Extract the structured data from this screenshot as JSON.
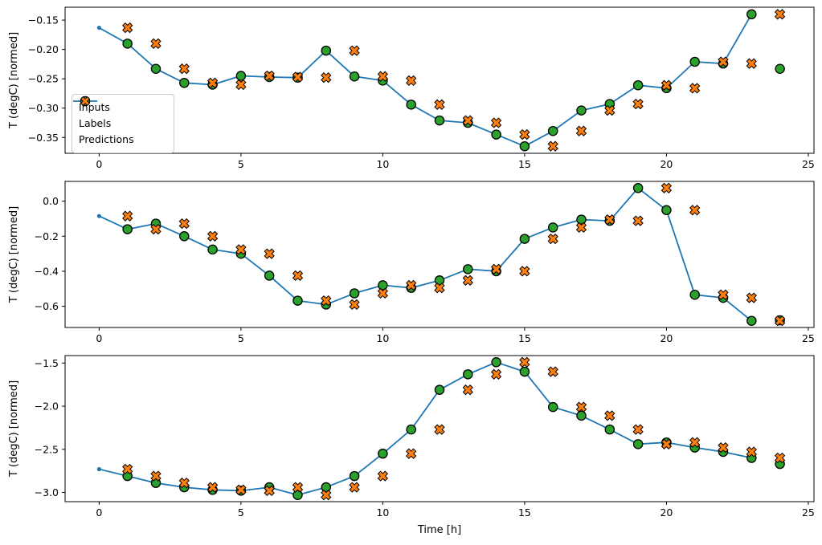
{
  "figure": {
    "xlabel": "Time [h]",
    "ylabel": "T (degC) [normed]"
  },
  "colors": {
    "inputs_line": "#1f77b4",
    "labels_marker": "#2ca02c",
    "predictions_marker": "#ff7f0e",
    "marker_edge": "#000000",
    "axis": "#000000",
    "background": "#ffffff"
  },
  "legend": {
    "items": [
      {
        "label": "Inputs",
        "marker": "line-dot",
        "color": "#1f77b4"
      },
      {
        "label": "Labels",
        "marker": "circle",
        "color": "#2ca02c"
      },
      {
        "label": "Predictions",
        "marker": "x-cross",
        "color": "#ff7f0e"
      }
    ]
  },
  "chart_data": [
    {
      "type": "line",
      "title": "",
      "xlabel": "",
      "ylabel": "T (degC) [normed]",
      "xlim": [
        -1.2,
        25.2
      ],
      "ylim": [
        -0.377,
        -0.128
      ],
      "x_ticks": [
        0,
        5,
        10,
        15,
        20,
        25
      ],
      "x_tick_labels": [
        "0",
        "5",
        "10",
        "15",
        "20",
        "25"
      ],
      "y_ticks": [
        -0.15,
        -0.2,
        -0.25,
        -0.3,
        -0.35
      ],
      "y_tick_labels": [
        "−0.15",
        "−0.20",
        "−0.25",
        "−0.30",
        "−0.35"
      ],
      "grid": false,
      "legend_position": "lower left",
      "series": [
        {
          "name": "Inputs",
          "style": "line-dot",
          "x": [
            0,
            1,
            2,
            3,
            4,
            5,
            6,
            7,
            8,
            9,
            10,
            11,
            12,
            13,
            14,
            15,
            16,
            17,
            18,
            19,
            20,
            21,
            22,
            23
          ],
          "y": [
            -0.163,
            -0.19,
            -0.233,
            -0.257,
            -0.26,
            -0.245,
            -0.247,
            -0.248,
            -0.202,
            -0.246,
            -0.253,
            -0.294,
            -0.321,
            -0.325,
            -0.345,
            -0.365,
            -0.339,
            -0.304,
            -0.293,
            -0.261,
            -0.266,
            -0.221,
            -0.224,
            -0.14
          ]
        },
        {
          "name": "Labels",
          "style": "circle",
          "x": [
            1,
            2,
            3,
            4,
            5,
            6,
            7,
            8,
            9,
            10,
            11,
            12,
            13,
            14,
            15,
            16,
            17,
            18,
            19,
            20,
            21,
            22,
            23,
            24
          ],
          "y": [
            -0.19,
            -0.233,
            -0.257,
            -0.26,
            -0.245,
            -0.247,
            -0.248,
            -0.202,
            -0.246,
            -0.253,
            -0.294,
            -0.321,
            -0.325,
            -0.345,
            -0.365,
            -0.339,
            -0.304,
            -0.293,
            -0.261,
            -0.266,
            -0.221,
            -0.224,
            -0.14,
            -0.233
          ]
        },
        {
          "name": "Predictions",
          "style": "x-cross",
          "x": [
            1,
            2,
            3,
            4,
            5,
            6,
            7,
            8,
            9,
            10,
            11,
            12,
            13,
            14,
            15,
            16,
            17,
            18,
            19,
            20,
            21,
            22,
            23,
            24
          ],
          "y": [
            -0.163,
            -0.19,
            -0.233,
            -0.257,
            -0.26,
            -0.245,
            -0.247,
            -0.248,
            -0.202,
            -0.246,
            -0.253,
            -0.294,
            -0.321,
            -0.325,
            -0.345,
            -0.365,
            -0.339,
            -0.304,
            -0.293,
            -0.261,
            -0.266,
            -0.221,
            -0.224,
            -0.14
          ]
        }
      ]
    },
    {
      "type": "line",
      "title": "",
      "xlabel": "",
      "ylabel": "T (degC) [normed]",
      "xlim": [
        -1.2,
        25.2
      ],
      "ylim": [
        -0.721,
        0.113
      ],
      "x_ticks": [
        0,
        5,
        10,
        15,
        20,
        25
      ],
      "x_tick_labels": [
        "0",
        "5",
        "10",
        "15",
        "20",
        "25"
      ],
      "y_ticks": [
        0.0,
        -0.2,
        -0.4,
        -0.6
      ],
      "y_tick_labels": [
        "0.0",
        "−0.2",
        "−0.4",
        "−0.6"
      ],
      "grid": false,
      "series": [
        {
          "name": "Inputs",
          "style": "line-dot",
          "x": [
            0,
            1,
            2,
            3,
            4,
            5,
            6,
            7,
            8,
            9,
            10,
            11,
            12,
            13,
            14,
            15,
            16,
            17,
            18,
            19,
            20,
            21,
            22,
            23
          ],
          "y": [
            -0.085,
            -0.16,
            -0.128,
            -0.2,
            -0.276,
            -0.3,
            -0.425,
            -0.568,
            -0.59,
            -0.526,
            -0.48,
            -0.495,
            -0.452,
            -0.388,
            -0.4,
            -0.215,
            -0.15,
            -0.105,
            -0.112,
            0.075,
            -0.051,
            -0.534,
            -0.552,
            -0.683
          ]
        },
        {
          "name": "Labels",
          "style": "circle",
          "x": [
            1,
            2,
            3,
            4,
            5,
            6,
            7,
            8,
            9,
            10,
            11,
            12,
            13,
            14,
            15,
            16,
            17,
            18,
            19,
            20,
            21,
            22,
            23,
            24
          ],
          "y": [
            -0.16,
            -0.128,
            -0.2,
            -0.276,
            -0.3,
            -0.425,
            -0.568,
            -0.59,
            -0.526,
            -0.48,
            -0.495,
            -0.452,
            -0.388,
            -0.4,
            -0.215,
            -0.15,
            -0.105,
            -0.112,
            0.075,
            -0.051,
            -0.534,
            -0.552,
            -0.683,
            -0.68
          ]
        },
        {
          "name": "Predictions",
          "style": "x-cross",
          "x": [
            1,
            2,
            3,
            4,
            5,
            6,
            7,
            8,
            9,
            10,
            11,
            12,
            13,
            14,
            15,
            16,
            17,
            18,
            19,
            20,
            21,
            22,
            23,
            24
          ],
          "y": [
            -0.085,
            -0.16,
            -0.128,
            -0.2,
            -0.276,
            -0.3,
            -0.425,
            -0.568,
            -0.59,
            -0.526,
            -0.48,
            -0.495,
            -0.452,
            -0.388,
            -0.4,
            -0.215,
            -0.15,
            -0.105,
            -0.112,
            0.075,
            -0.051,
            -0.534,
            -0.552,
            -0.683
          ]
        }
      ]
    },
    {
      "type": "line",
      "title": "",
      "xlabel": "Time [h]",
      "ylabel": "T (degC) [normed]",
      "xlim": [
        -1.2,
        25.2
      ],
      "ylim": [
        -3.107,
        -1.413
      ],
      "x_ticks": [
        0,
        5,
        10,
        15,
        20,
        25
      ],
      "x_tick_labels": [
        "0",
        "5",
        "10",
        "15",
        "20",
        "25"
      ],
      "y_ticks": [
        -1.5,
        -2.0,
        -2.5,
        -3.0
      ],
      "y_tick_labels": [
        "−1.5",
        "−2.0",
        "−2.5",
        "−3.0"
      ],
      "grid": false,
      "series": [
        {
          "name": "Inputs",
          "style": "line-dot",
          "x": [
            0,
            1,
            2,
            3,
            4,
            5,
            6,
            7,
            8,
            9,
            10,
            11,
            12,
            13,
            14,
            15,
            16,
            17,
            18,
            19,
            20,
            21,
            22,
            23
          ],
          "y": [
            -2.73,
            -2.81,
            -2.89,
            -2.94,
            -2.97,
            -2.98,
            -2.94,
            -3.03,
            -2.94,
            -2.81,
            -2.55,
            -2.27,
            -1.81,
            -1.63,
            -1.49,
            -1.6,
            -2.01,
            -2.11,
            -2.27,
            -2.44,
            -2.42,
            -2.48,
            -2.53,
            -2.6
          ]
        },
        {
          "name": "Labels",
          "style": "circle",
          "x": [
            1,
            2,
            3,
            4,
            5,
            6,
            7,
            8,
            9,
            10,
            11,
            12,
            13,
            14,
            15,
            16,
            17,
            18,
            19,
            20,
            21,
            22,
            23,
            24
          ],
          "y": [
            -2.81,
            -2.89,
            -2.94,
            -2.97,
            -2.98,
            -2.94,
            -3.03,
            -2.94,
            -2.81,
            -2.55,
            -2.27,
            -1.81,
            -1.63,
            -1.49,
            -1.6,
            -2.01,
            -2.11,
            -2.27,
            -2.44,
            -2.42,
            -2.48,
            -2.53,
            -2.6,
            -2.67
          ]
        },
        {
          "name": "Predictions",
          "style": "x-cross",
          "x": [
            1,
            2,
            3,
            4,
            5,
            6,
            7,
            8,
            9,
            10,
            11,
            12,
            13,
            14,
            15,
            16,
            17,
            18,
            19,
            20,
            21,
            22,
            23,
            24
          ],
          "y": [
            -2.73,
            -2.81,
            -2.89,
            -2.94,
            -2.97,
            -2.98,
            -2.94,
            -3.03,
            -2.94,
            -2.81,
            -2.55,
            -2.27,
            -1.81,
            -1.63,
            -1.49,
            -1.6,
            -2.01,
            -2.11,
            -2.27,
            -2.44,
            -2.42,
            -2.48,
            -2.53,
            -2.6
          ]
        }
      ]
    }
  ]
}
